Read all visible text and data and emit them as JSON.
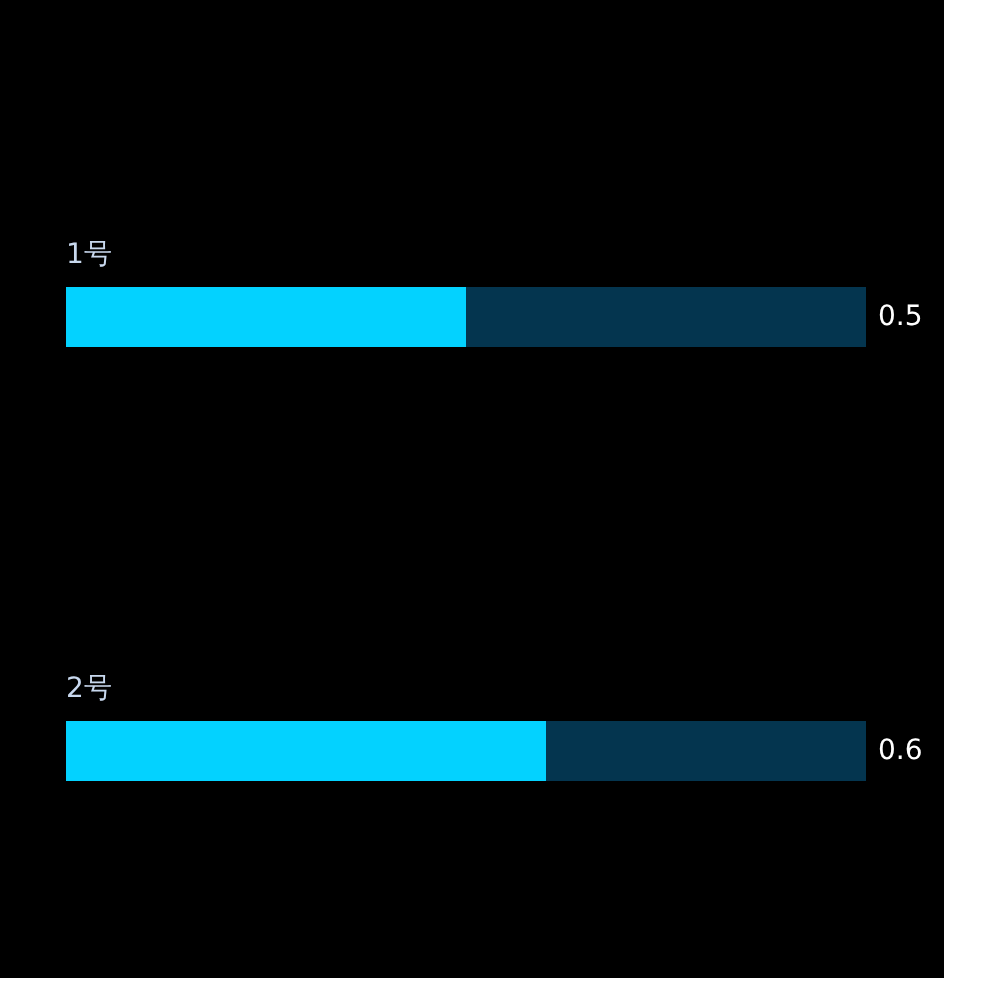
{
  "chart_data": {
    "type": "bar",
    "orientation": "horizontal",
    "stacked": true,
    "categories": [
      "1号",
      "2号"
    ],
    "xlim": [
      0,
      1
    ],
    "tick_labels": "y",
    "series": [
      {
        "color": "#03d2ff",
        "values": [
          0.5,
          0.6
        ],
        "value_labels": [
          "0.5",
          "0.6"
        ]
      },
      {
        "color": "#04354f",
        "values": [
          0.5,
          0.4
        ]
      }
    ]
  }
}
